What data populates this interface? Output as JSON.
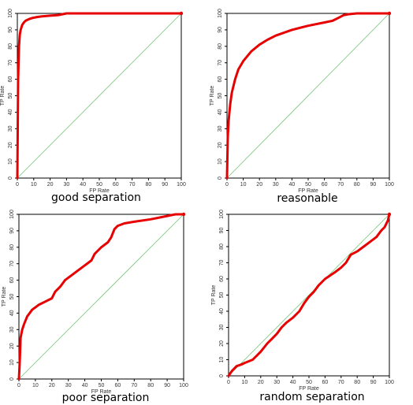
{
  "chart_data": [
    {
      "type": "line",
      "caption": "good separation",
      "xlabel": "FP Rate",
      "ylabel": "TP Rate",
      "xlim": [
        0,
        100
      ],
      "ylim": [
        0,
        100
      ],
      "ticks": [
        0,
        10,
        20,
        30,
        40,
        50,
        60,
        70,
        80,
        90,
        100
      ],
      "reference_line": [
        [
          0,
          0
        ],
        [
          100,
          100
        ]
      ],
      "series": [
        {
          "x": [
            0,
            0.5,
            1,
            1.5,
            2,
            3,
            4,
            5,
            7,
            9,
            12,
            15,
            20,
            25,
            30,
            40,
            50,
            60,
            70,
            80,
            90,
            100
          ],
          "y": [
            0,
            60,
            80,
            87,
            90,
            93,
            94.5,
            95.5,
            96.5,
            97.2,
            97.8,
            98.2,
            98.6,
            99,
            100,
            100,
            100,
            100,
            100,
            100,
            100,
            100
          ]
        }
      ]
    },
    {
      "type": "line",
      "caption": "reasonable",
      "xlabel": "FP Rate",
      "ylabel": "TP Rate",
      "xlim": [
        0,
        100
      ],
      "ylim": [
        0,
        100
      ],
      "ticks": [
        0,
        10,
        20,
        30,
        40,
        50,
        60,
        70,
        80,
        90,
        100
      ],
      "reference_line": [
        [
          0,
          0
        ],
        [
          100,
          100
        ]
      ],
      "series": [
        {
          "x": [
            0,
            0.5,
            1,
            2,
            3,
            5,
            7,
            10,
            15,
            20,
            25,
            30,
            40,
            50,
            60,
            65,
            68,
            70,
            72,
            75,
            80,
            85,
            90,
            100
          ],
          "y": [
            0,
            25,
            35,
            45,
            52,
            60,
            66,
            71,
            77,
            81,
            84,
            86.5,
            90,
            92.5,
            94.5,
            95.5,
            97,
            98,
            99,
            99.5,
            100,
            100,
            100,
            100
          ]
        }
      ]
    },
    {
      "type": "line",
      "caption": "poor separation",
      "xlabel": "FP Rate",
      "ylabel": "TP Rate",
      "xlim": [
        0,
        100
      ],
      "ylim": [
        0,
        100
      ],
      "ticks": [
        0,
        10,
        20,
        30,
        40,
        50,
        60,
        70,
        80,
        90,
        100
      ],
      "reference_line": [
        [
          0,
          0
        ],
        [
          100,
          100
        ]
      ],
      "series": [
        {
          "x": [
            0,
            0.5,
            1,
            2,
            3,
            5,
            8,
            12,
            16,
            20,
            22,
            25,
            28,
            32,
            36,
            40,
            44,
            46,
            48,
            50,
            54,
            56,
            58,
            60,
            64,
            70,
            80,
            90,
            95,
            98,
            100
          ],
          "y": [
            0,
            10,
            25,
            30,
            33,
            38,
            42,
            45,
            47,
            49,
            53,
            56,
            60,
            63,
            66,
            69,
            72,
            76,
            78,
            80,
            83,
            86,
            91,
            93,
            94.5,
            95.5,
            97,
            99,
            100,
            100,
            100
          ]
        }
      ]
    },
    {
      "type": "line",
      "caption": "random separation",
      "xlabel": "FP Rate",
      "ylabel": "TP Rate",
      "xlim": [
        0,
        100
      ],
      "ylim": [
        0,
        100
      ],
      "ticks": [
        0,
        10,
        20,
        30,
        40,
        50,
        60,
        70,
        80,
        90,
        100
      ],
      "reference_line": [
        [
          0,
          0
        ],
        [
          100,
          100
        ]
      ],
      "series": [
        {
          "x": [
            0,
            2,
            5,
            8,
            10,
            15,
            18,
            20,
            24,
            27,
            30,
            33,
            36,
            40,
            44,
            47,
            50,
            53,
            56,
            60,
            63,
            66,
            70,
            73,
            76,
            80,
            84,
            88,
            92,
            95,
            97,
            99,
            100
          ],
          "y": [
            0,
            3,
            6,
            7,
            8,
            10,
            13,
            15,
            20,
            23,
            26,
            30,
            33,
            36,
            40,
            45,
            49,
            52,
            56,
            60,
            62,
            64,
            67,
            70,
            75,
            77,
            80,
            83,
            86,
            90,
            92,
            96,
            100
          ]
        }
      ]
    }
  ]
}
